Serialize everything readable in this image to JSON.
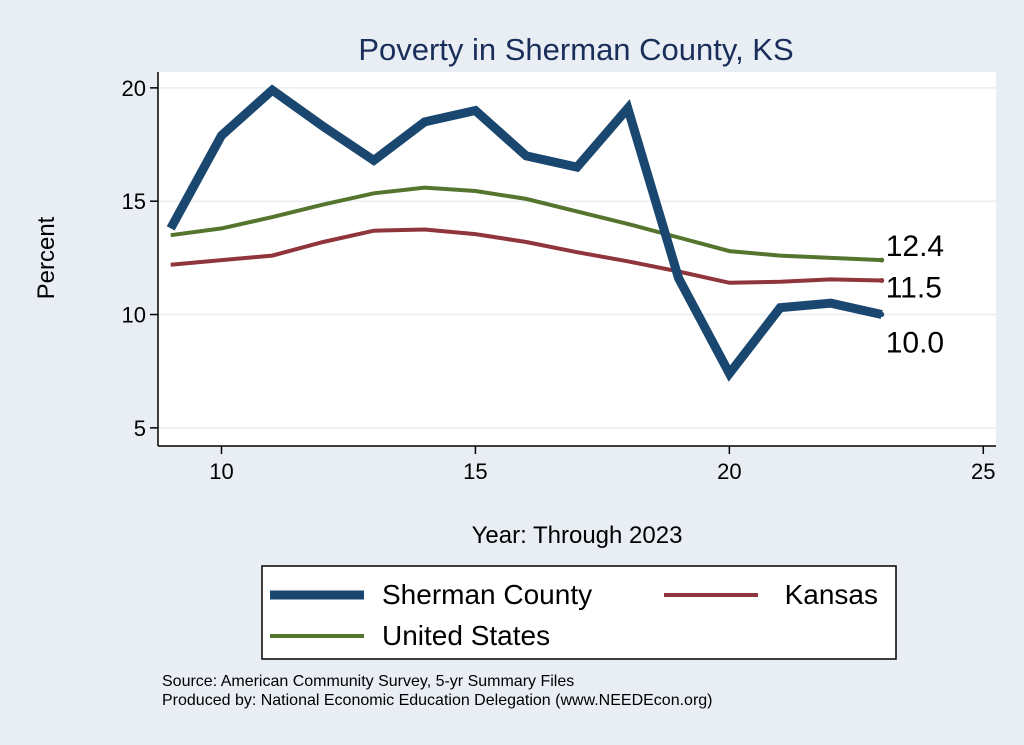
{
  "chart_data": {
    "type": "line",
    "title": "Poverty in Sherman County, KS",
    "xlabel": "Year: Through 2023",
    "ylabel": "Percent",
    "xlim": [
      8.75,
      25.25
    ],
    "ylim": [
      4.2,
      20.7
    ],
    "xticks": [
      10,
      15,
      20,
      25
    ],
    "yticks": [
      5,
      10,
      15,
      20
    ],
    "grid": true,
    "legend_position": "bottom",
    "series": [
      {
        "name": "Sherman County",
        "color": "#1a476f",
        "width": 9,
        "x": [
          9,
          10,
          11,
          12,
          13,
          14,
          15,
          16,
          17,
          18,
          19,
          20,
          21,
          22,
          23
        ],
        "y": [
          13.8,
          17.9,
          19.9,
          18.3,
          16.8,
          18.5,
          19.0,
          17.0,
          16.5,
          19.1,
          11.6,
          7.4,
          10.3,
          10.5,
          10.0
        ],
        "end_label": "10.0"
      },
      {
        "name": "Kansas",
        "color": "#90353b",
        "width": 4,
        "x": [
          9,
          10,
          11,
          12,
          13,
          14,
          15,
          16,
          17,
          18,
          19,
          20,
          21,
          22,
          23
        ],
        "y": [
          12.2,
          12.4,
          12.6,
          13.2,
          13.7,
          13.75,
          13.55,
          13.2,
          12.75,
          12.35,
          11.9,
          11.4,
          11.45,
          11.55,
          11.5
        ],
        "end_label": "11.5"
      },
      {
        "name": "United States",
        "color": "#55752f",
        "width": 4,
        "x": [
          9,
          10,
          11,
          12,
          13,
          14,
          15,
          16,
          17,
          18,
          19,
          20,
          21,
          22,
          23
        ],
        "y": [
          13.5,
          13.8,
          14.3,
          14.85,
          15.35,
          15.6,
          15.45,
          15.1,
          14.55,
          14.0,
          13.4,
          12.8,
          12.6,
          12.5,
          12.4
        ],
        "end_label": "12.4"
      }
    ]
  },
  "legend_colors": {
    "frame": "#000000",
    "fill": "#ffffff"
  },
  "colors": {
    "background": "#e8eef4",
    "plot": "#ffffff",
    "grid": "#e8eef4",
    "title": "#1a2e5a"
  },
  "source": {
    "line1": "Source: American Community Survey, 5-yr Summary Files",
    "line2": "Produced by: National Economic Education Delegation (www.NEEDEcon.org)"
  }
}
